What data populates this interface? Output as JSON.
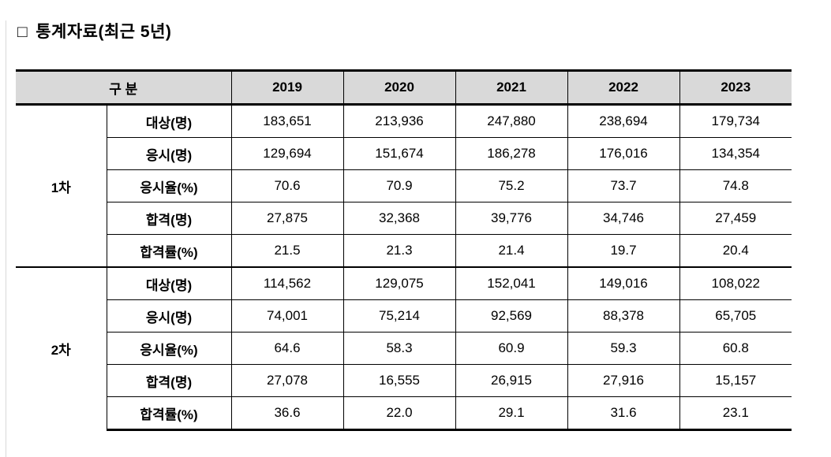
{
  "title": {
    "bullet": "□",
    "text": "통계자료(최근 5년)"
  },
  "colors": {
    "header_bg": "#d9d9d9",
    "border": "#000000",
    "page_edge": "#d9d9d9"
  },
  "table": {
    "header": {
      "category_label": "구 분",
      "years": [
        "2019",
        "2020",
        "2021",
        "2022",
        "2023"
      ]
    },
    "groups": [
      {
        "name": "1차",
        "rows": [
          {
            "label": "대상(명)",
            "values": [
              "183,651",
              "213,936",
              "247,880",
              "238,694",
              "179,734"
            ]
          },
          {
            "label": "응시(명)",
            "values": [
              "129,694",
              "151,674",
              "186,278",
              "176,016",
              "134,354"
            ]
          },
          {
            "label": "응시율(%)",
            "values": [
              "70.6",
              "70.9",
              "75.2",
              "73.7",
              "74.8"
            ]
          },
          {
            "label": "합격(명)",
            "values": [
              "27,875",
              "32,368",
              "39,776",
              "34,746",
              "27,459"
            ]
          },
          {
            "label": "합격률(%)",
            "values": [
              "21.5",
              "21.3",
              "21.4",
              "19.7",
              "20.4"
            ]
          }
        ]
      },
      {
        "name": "2차",
        "rows": [
          {
            "label": "대상(명)",
            "values": [
              "114,562",
              "129,075",
              "152,041",
              "149,016",
              "108,022"
            ]
          },
          {
            "label": "응시(명)",
            "values": [
              "74,001",
              "75,214",
              "92,569",
              "88,378",
              "65,705"
            ]
          },
          {
            "label": "응시율(%)",
            "values": [
              "64.6",
              "58.3",
              "60.9",
              "59.3",
              "60.8"
            ]
          },
          {
            "label": "합격(명)",
            "values": [
              "27,078",
              "16,555",
              "26,915",
              "27,916",
              "15,157"
            ]
          },
          {
            "label": "합격률(%)",
            "values": [
              "36.6",
              "22.0",
              "29.1",
              "31.6",
              "23.1"
            ]
          }
        ]
      }
    ]
  }
}
